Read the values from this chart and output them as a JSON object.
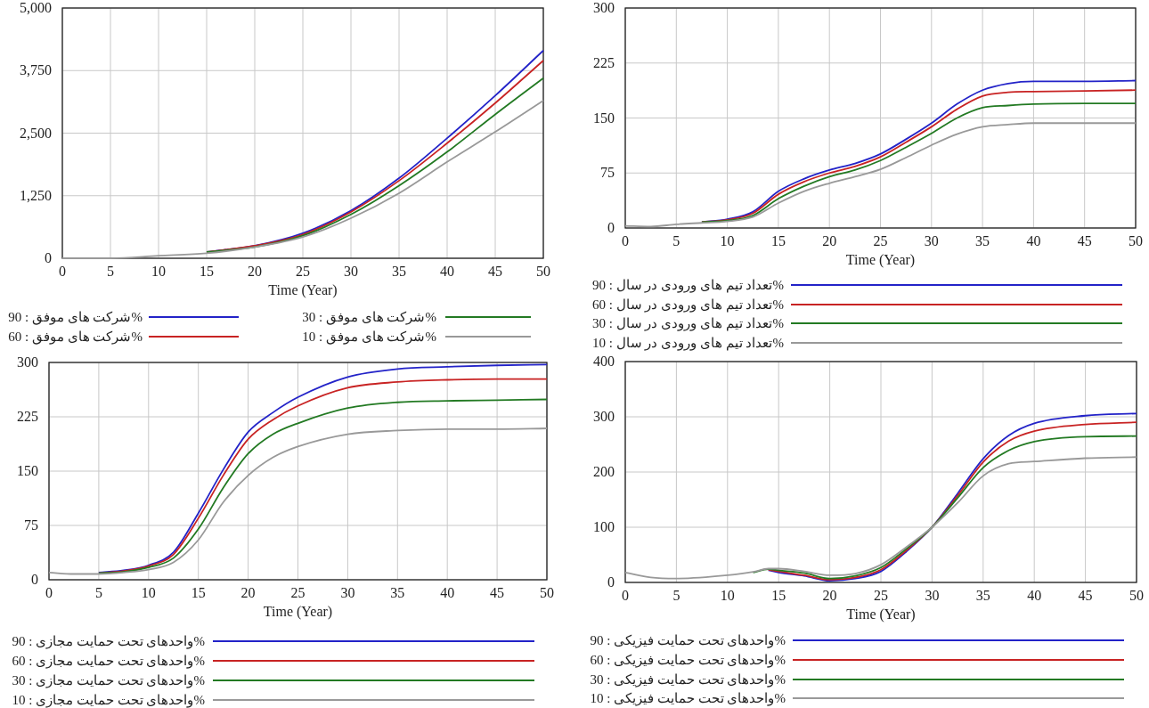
{
  "chart_data": [
    {
      "type": "line",
      "xlabel": "Time (Year)",
      "xlim": [
        0,
        50
      ],
      "xticks": [
        0,
        5,
        10,
        15,
        20,
        25,
        30,
        35,
        40,
        45,
        50
      ],
      "ylim": [
        0,
        5000
      ],
      "yticks": [
        0,
        {
          "value": 1250,
          "label": "1,250"
        },
        {
          "value": 2500,
          "label": "2,500"
        },
        {
          "value": 3750,
          "label": "3,750"
        },
        {
          "value": 5000,
          "label": "5,000"
        }
      ],
      "grid": true,
      "legend": "bottom",
      "x": [
        0,
        5,
        10,
        15,
        20,
        25,
        30,
        35,
        40,
        45,
        50
      ],
      "series": [
        {
          "name": "%شرکت های موفق : 90",
          "color": "#2323c8",
          "values": [
            null,
            null,
            null,
            125,
            250,
            500,
            950,
            1600,
            2400,
            3250,
            4150
          ]
        },
        {
          "name": "%شرکت های موفق : 60",
          "color": "#c82323",
          "values": [
            null,
            null,
            null,
            125,
            250,
            475,
            925,
            1550,
            2300,
            3100,
            3950
          ]
        },
        {
          "name": "%شرکت های موفق : 30",
          "color": "#237a23",
          "values": [
            null,
            null,
            null,
            125,
            225,
            450,
            875,
            1450,
            2125,
            2875,
            3600
          ]
        },
        {
          "name": "%شرکت های موفق : 10",
          "color": "#999999",
          "values": [
            0,
            0,
            50,
            100,
            225,
            425,
            800,
            1300,
            1925,
            2525,
            3150
          ]
        }
      ]
    },
    {
      "type": "line",
      "xlabel": "Time (Year)",
      "xlim": [
        0,
        50
      ],
      "xticks": [
        0,
        5,
        10,
        15,
        20,
        25,
        30,
        35,
        40,
        45,
        50
      ],
      "ylim": [
        0,
        300
      ],
      "yticks": [
        0,
        75,
        150,
        225,
        300
      ],
      "grid": true,
      "legend": "bottom",
      "x": [
        0,
        2.5,
        5,
        7.5,
        10,
        12.5,
        15,
        17.5,
        20,
        22.5,
        25,
        27.5,
        30,
        32.5,
        35,
        37.5,
        40,
        45,
        50
      ],
      "series": [
        {
          "name": "%تعداد تیم های ورودی در سال : 90",
          "color": "#2323c8",
          "values": [
            null,
            null,
            null,
            8,
            12,
            22,
            50,
            67,
            79,
            88,
            101,
            121,
            143,
            169,
            188,
            197,
            200,
            200,
            201
          ]
        },
        {
          "name": "%تعداد تیم های ورودی در سال : 60",
          "color": "#c82323",
          "values": [
            null,
            null,
            null,
            8,
            11,
            20,
            46,
            63,
            75,
            84,
            97,
            117,
            138,
            162,
            180,
            185,
            186,
            187,
            188
          ]
        },
        {
          "name": "%تعداد تیم های ورودی در سال : 30",
          "color": "#237a23",
          "values": [
            null,
            null,
            null,
            8,
            10,
            17,
            40,
            57,
            70,
            79,
            92,
            110,
            129,
            150,
            164,
            167,
            169,
            170,
            170
          ]
        },
        {
          "name": "%تعداد تیم های ورودی در سال : 10",
          "color": "#999999",
          "values": [
            3,
            2,
            5,
            7,
            9,
            15,
            34,
            50,
            61,
            70,
            80,
            96,
            113,
            128,
            138,
            141,
            143,
            143,
            143
          ]
        }
      ]
    },
    {
      "type": "line",
      "xlabel": "Time (Year)",
      "xlim": [
        0,
        50
      ],
      "xticks": [
        0,
        5,
        10,
        15,
        20,
        25,
        30,
        35,
        40,
        45,
        50
      ],
      "ylim": [
        0,
        300
      ],
      "yticks": [
        0,
        75,
        150,
        225,
        300
      ],
      "grid": true,
      "legend": "bottom",
      "x": [
        0,
        2.5,
        5,
        7.5,
        10,
        12.5,
        15,
        17.5,
        20,
        22.5,
        25,
        30,
        35,
        40,
        45,
        50
      ],
      "series": [
        {
          "name": "%واحدهای تحت حمایت مجازی : 90",
          "color": "#2323c8",
          "values": [
            null,
            null,
            10,
            13,
            20,
            38,
            92,
            152,
            204,
            231,
            252,
            280,
            291,
            294,
            296,
            297
          ]
        },
        {
          "name": "%واحدهای تحت حمایت مجازی : 60",
          "color": "#c82323",
          "values": [
            null,
            null,
            9,
            12,
            19,
            35,
            85,
            144,
            194,
            221,
            240,
            265,
            273,
            276,
            277,
            277
          ]
        },
        {
          "name": "%واحدهای تحت حمایت مجازی : 30",
          "color": "#237a23",
          "values": [
            null,
            null,
            9,
            11,
            17,
            30,
            70,
            127,
            174,
            201,
            216,
            237,
            245,
            247,
            248,
            249
          ]
        },
        {
          "name": "%واحدهای تحت حمایت مجازی : 10",
          "color": "#999999",
          "values": [
            10,
            8,
            8,
            10,
            14,
            24,
            55,
            107,
            144,
            169,
            184,
            201,
            206,
            208,
            208,
            209
          ]
        }
      ]
    },
    {
      "type": "line",
      "xlabel": "Time (Year)",
      "xlim": [
        0,
        50
      ],
      "xticks": [
        0,
        5,
        10,
        15,
        20,
        25,
        30,
        35,
        40,
        45,
        50
      ],
      "ylim": [
        0,
        400
      ],
      "yticks": [
        0,
        100,
        200,
        300,
        400
      ],
      "grid": true,
      "legend": "bottom",
      "x": [
        0,
        2.5,
        5,
        10,
        12.5,
        14,
        15,
        17.5,
        20,
        22.5,
        25,
        27.5,
        30,
        32.5,
        35,
        37.5,
        40,
        45,
        50
      ],
      "series": [
        {
          "name": "%واحدهای تحت حمایت فیزیکی : 90",
          "color": "#2323c8",
          "values": [
            null,
            null,
            null,
            null,
            null,
            22,
            18,
            12,
            3,
            7,
            20,
            56,
            100,
            161,
            224,
            266,
            288,
            302,
            306
          ]
        },
        {
          "name": "%واحدهای تحت حمایت فیزیکی : 60",
          "color": "#c82323",
          "values": [
            null,
            null,
            null,
            null,
            null,
            23,
            20,
            13,
            5,
            9,
            23,
            58,
            100,
            157,
            218,
            256,
            274,
            286,
            290
          ]
        },
        {
          "name": "%واحدهای تحت حمایت فیزیکی : 30",
          "color": "#237a23",
          "values": [
            null,
            null,
            null,
            null,
            18,
            24,
            22,
            17,
            7,
            12,
            27,
            61,
            100,
            153,
            208,
            239,
            255,
            264,
            265
          ]
        },
        {
          "name": "%واحدهای تحت حمایت فیزیکی : 10",
          "color": "#999999",
          "values": [
            18,
            9,
            7,
            13,
            19,
            25,
            25,
            20,
            13,
            16,
            32,
            64,
            100,
            144,
            193,
            215,
            219,
            225,
            227
          ]
        }
      ]
    }
  ]
}
